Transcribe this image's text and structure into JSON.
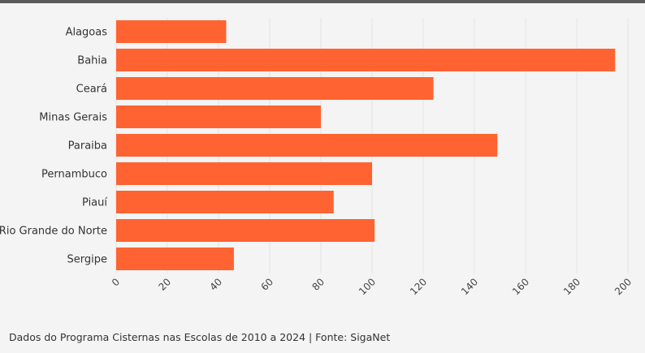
{
  "chart_data": {
    "type": "bar",
    "orientation": "horizontal",
    "categories": [
      "Alagoas",
      "Bahia",
      "Ceará",
      "Minas Gerais",
      "Paraiba",
      "Pernambuco",
      "Piauí",
      "Rio Grande do Norte",
      "Sergipe"
    ],
    "values": [
      43,
      195,
      124,
      80,
      149,
      100,
      85,
      101,
      46
    ],
    "xlim": [
      0,
      200
    ],
    "x_ticks": [
      0,
      20,
      40,
      60,
      80,
      100,
      120,
      140,
      160,
      180,
      200
    ],
    "grid": true,
    "bar_color": "#ff6332",
    "title": "",
    "xlabel": "",
    "ylabel": ""
  },
  "footnote": "Dados do Programa Cisternas nas Escolas de 2010 a 2024 | Fonte: SigaNet"
}
